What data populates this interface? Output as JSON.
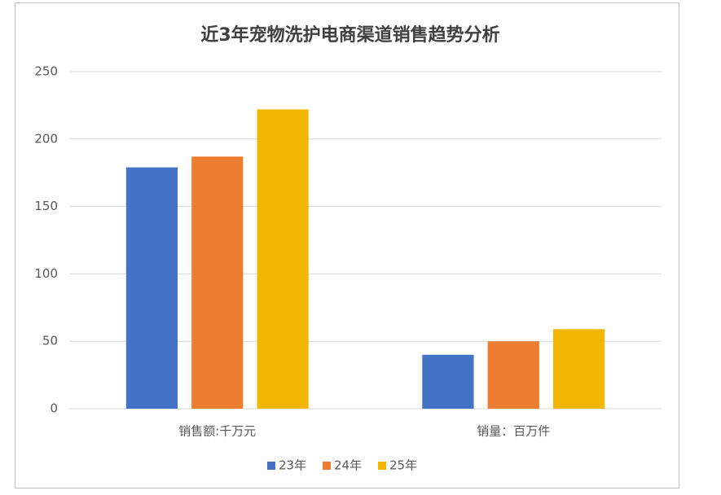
{
  "chart_data": {
    "type": "bar",
    "title": "近3年宠物洗护电商渠道销售趋势分析",
    "categories": [
      "销售额:千万元",
      "销量：百万件"
    ],
    "series": [
      {
        "name": "23年",
        "color": "#4472c4",
        "values": [
          179,
          40
        ]
      },
      {
        "name": "24年",
        "color": "#ed7d31",
        "values": [
          187,
          50
        ]
      },
      {
        "name": "25年",
        "color": "#f2b705",
        "values": [
          222,
          59
        ]
      }
    ],
    "ylim": [
      0,
      250
    ],
    "yticks": [
      0,
      50,
      100,
      150,
      200,
      250
    ],
    "grid": true,
    "legend": "bottom"
  }
}
